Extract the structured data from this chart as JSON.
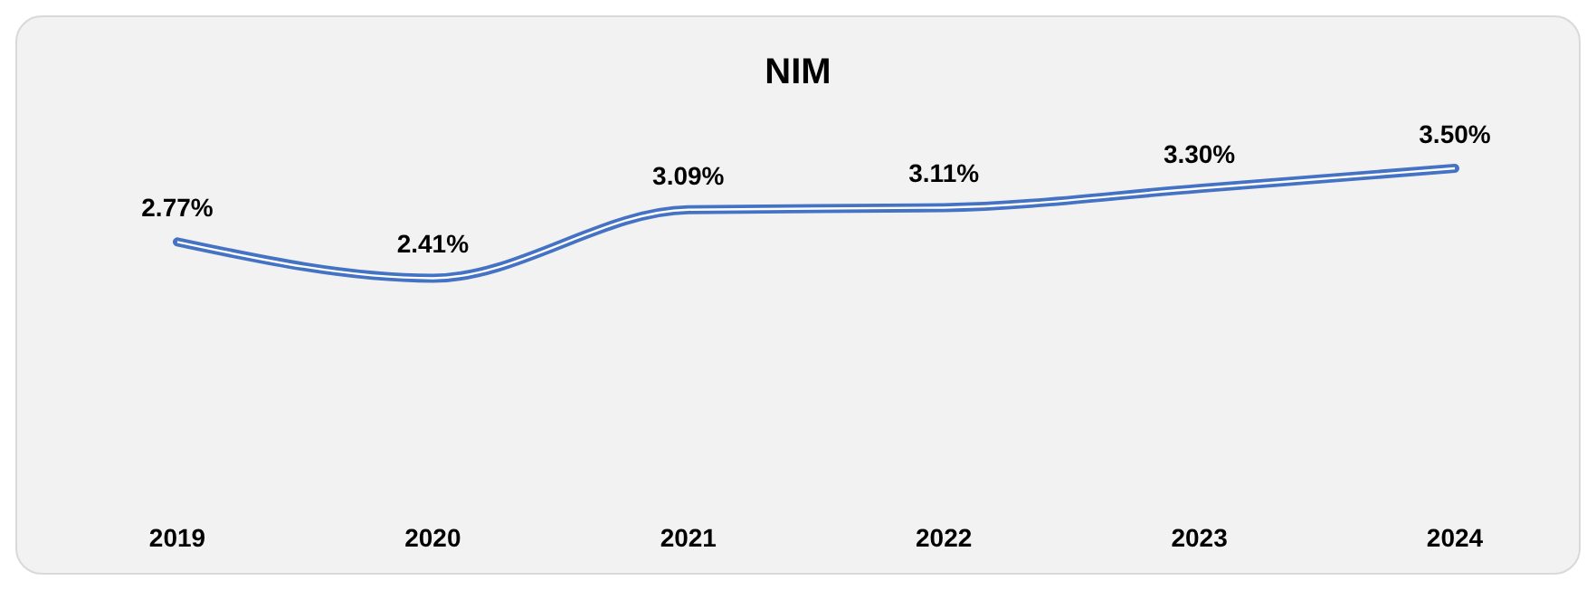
{
  "chart_data": {
    "type": "line",
    "title": "NIM",
    "categories": [
      "2019",
      "2020",
      "2021",
      "2022",
      "2023",
      "2024"
    ],
    "series": [
      {
        "color": "#4472c4",
        "values": [
          2.77,
          2.41,
          3.09,
          3.11,
          3.3,
          3.5
        ],
        "value_labels": [
          "2.77%",
          "2.41%",
          "3.09%",
          "3.11%",
          "3.30%",
          "3.50%"
        ]
      }
    ],
    "grid": false,
    "tick_labels": "x",
    "marker": "none",
    "line_style": "solid"
  }
}
